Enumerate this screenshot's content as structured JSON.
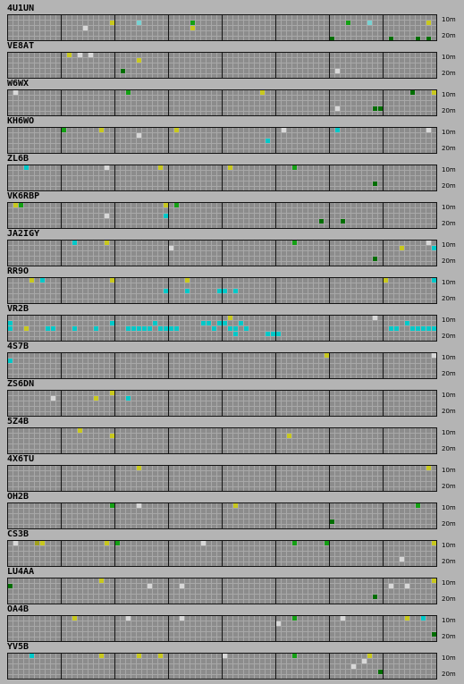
{
  "colors": {
    "background": "#b4b4b4",
    "cell": "#8c8c8c",
    "minor_line": "#a8a8a8",
    "major_line": "#141414",
    "yellow": "#c8c81e",
    "green": "#14a014",
    "darkgreen": "#006e00",
    "cyan": "#00c8c8",
    "lightcyan": "#78d2d2",
    "white": "#d8d8d8",
    "olive": "#a0a01e"
  },
  "band_labels": {
    "top": "10m",
    "bottom": "20m"
  },
  "grid": {
    "columns": 80,
    "rows": 5,
    "major_every": 10
  },
  "stations": [
    {
      "callsign": "4U1UN",
      "spots": [
        [
          19,
          1,
          "yellow"
        ],
        [
          24,
          1,
          "lightcyan"
        ],
        [
          34,
          1,
          "green"
        ],
        [
          34,
          2,
          "yellow"
        ],
        [
          63,
          1,
          "green"
        ],
        [
          67,
          1,
          "lightcyan"
        ],
        [
          78,
          1,
          "yellow"
        ],
        [
          60,
          4,
          "darkgreen"
        ],
        [
          71,
          4,
          "darkgreen"
        ],
        [
          76,
          4,
          "darkgreen"
        ],
        [
          78,
          4,
          "darkgreen"
        ],
        [
          14,
          2,
          "white"
        ]
      ]
    },
    {
      "callsign": "VE8AT",
      "spots": [
        [
          11,
          0,
          "yellow"
        ],
        [
          15,
          0,
          "white"
        ],
        [
          24,
          1,
          "yellow"
        ],
        [
          21,
          3,
          "darkgreen"
        ],
        [
          61,
          3,
          "white"
        ],
        [
          13,
          0,
          "white"
        ]
      ]
    },
    {
      "callsign": "W6WX",
      "spots": [
        [
          1,
          0,
          "white"
        ],
        [
          22,
          0,
          "green"
        ],
        [
          47,
          0,
          "yellow"
        ],
        [
          75,
          0,
          "darkgreen"
        ],
        [
          79,
          0,
          "yellow"
        ],
        [
          61,
          3,
          "white"
        ],
        [
          68,
          3,
          "darkgreen"
        ],
        [
          69,
          3,
          "darkgreen"
        ]
      ]
    },
    {
      "callsign": "KH6WO",
      "spots": [
        [
          10,
          0,
          "green"
        ],
        [
          17,
          0,
          "yellow"
        ],
        [
          31,
          0,
          "yellow"
        ],
        [
          51,
          0,
          "white"
        ],
        [
          61,
          0,
          "cyan"
        ],
        [
          78,
          0,
          "white"
        ],
        [
          48,
          2,
          "cyan"
        ],
        [
          24,
          1,
          "white"
        ]
      ]
    },
    {
      "callsign": "ZL6B",
      "spots": [
        [
          3,
          0,
          "cyan"
        ],
        [
          28,
          0,
          "yellow"
        ],
        [
          41,
          0,
          "yellow"
        ],
        [
          53,
          0,
          "green"
        ],
        [
          68,
          3,
          "darkgreen"
        ],
        [
          18,
          0,
          "white"
        ]
      ]
    },
    {
      "callsign": "VK6RBP",
      "spots": [
        [
          1,
          0,
          "yellow"
        ],
        [
          2,
          0,
          "green"
        ],
        [
          29,
          0,
          "yellow"
        ],
        [
          31,
          0,
          "green"
        ],
        [
          29,
          2,
          "cyan"
        ],
        [
          58,
          3,
          "darkgreen"
        ],
        [
          62,
          3,
          "darkgreen"
        ],
        [
          18,
          2,
          "white"
        ]
      ]
    },
    {
      "callsign": "JA2IGY",
      "spots": [
        [
          12,
          0,
          "cyan"
        ],
        [
          18,
          0,
          "yellow"
        ],
        [
          53,
          0,
          "green"
        ],
        [
          68,
          3,
          "darkgreen"
        ],
        [
          73,
          1,
          "yellow"
        ],
        [
          79,
          1,
          "cyan"
        ],
        [
          30,
          1,
          "white"
        ],
        [
          78,
          0,
          "white"
        ]
      ]
    },
    {
      "callsign": "RR9O",
      "spots": [
        [
          4,
          0,
          "yellow"
        ],
        [
          6,
          0,
          "cyan"
        ],
        [
          19,
          0,
          "yellow"
        ],
        [
          33,
          0,
          "yellow"
        ],
        [
          29,
          2,
          "cyan"
        ],
        [
          33,
          2,
          "cyan"
        ],
        [
          39,
          2,
          "cyan"
        ],
        [
          40,
          2,
          "cyan"
        ],
        [
          42,
          2,
          "cyan"
        ],
        [
          70,
          0,
          "yellow"
        ],
        [
          79,
          0,
          "cyan"
        ]
      ]
    },
    {
      "callsign": "VR2B",
      "spots": [
        [
          0,
          1,
          "cyan"
        ],
        [
          0,
          2,
          "cyan"
        ],
        [
          3,
          2,
          "yellow"
        ],
        [
          7,
          2,
          "cyan"
        ],
        [
          8,
          2,
          "cyan"
        ],
        [
          12,
          2,
          "cyan"
        ],
        [
          16,
          2,
          "cyan"
        ],
        [
          19,
          1,
          "cyan"
        ],
        [
          22,
          2,
          "cyan"
        ],
        [
          23,
          2,
          "cyan"
        ],
        [
          24,
          2,
          "cyan"
        ],
        [
          25,
          2,
          "cyan"
        ],
        [
          26,
          2,
          "cyan"
        ],
        [
          27,
          1,
          "cyan"
        ],
        [
          28,
          2,
          "cyan"
        ],
        [
          29,
          2,
          "cyan"
        ],
        [
          30,
          2,
          "cyan"
        ],
        [
          31,
          2,
          "cyan"
        ],
        [
          36,
          1,
          "cyan"
        ],
        [
          37,
          1,
          "cyan"
        ],
        [
          38,
          2,
          "cyan"
        ],
        [
          39,
          1,
          "cyan"
        ],
        [
          40,
          1,
          "cyan"
        ],
        [
          41,
          2,
          "cyan"
        ],
        [
          42,
          2,
          "cyan"
        ],
        [
          42,
          3,
          "cyan"
        ],
        [
          43,
          1,
          "cyan"
        ],
        [
          44,
          2,
          "cyan"
        ],
        [
          41,
          0,
          "yellow"
        ],
        [
          48,
          3,
          "cyan"
        ],
        [
          49,
          3,
          "cyan"
        ],
        [
          50,
          3,
          "cyan"
        ],
        [
          68,
          0,
          "white"
        ],
        [
          71,
          2,
          "cyan"
        ],
        [
          72,
          2,
          "cyan"
        ],
        [
          74,
          1,
          "cyan"
        ],
        [
          75,
          2,
          "cyan"
        ],
        [
          76,
          2,
          "cyan"
        ],
        [
          77,
          2,
          "cyan"
        ],
        [
          78,
          2,
          "cyan"
        ],
        [
          79,
          2,
          "cyan"
        ]
      ]
    },
    {
      "callsign": "4S7B",
      "spots": [
        [
          0,
          1,
          "cyan"
        ],
        [
          59,
          0,
          "yellow"
        ],
        [
          79,
          0,
          "white"
        ]
      ]
    },
    {
      "callsign": "ZS6DN",
      "spots": [
        [
          16,
          1,
          "yellow"
        ],
        [
          19,
          0,
          "yellow"
        ],
        [
          22,
          1,
          "cyan"
        ],
        [
          8,
          1,
          "white"
        ]
      ]
    },
    {
      "callsign": "5Z4B",
      "spots": [
        [
          13,
          0,
          "yellow"
        ],
        [
          19,
          1,
          "yellow"
        ],
        [
          52,
          1,
          "yellow"
        ]
      ]
    },
    {
      "callsign": "4X6TU",
      "spots": [
        [
          24,
          0,
          "yellow"
        ],
        [
          78,
          0,
          "yellow"
        ]
      ]
    },
    {
      "callsign": "OH2B",
      "spots": [
        [
          19,
          0,
          "green"
        ],
        [
          24,
          0,
          "white"
        ],
        [
          42,
          0,
          "yellow"
        ],
        [
          60,
          3,
          "darkgreen"
        ],
        [
          76,
          0,
          "green"
        ]
      ]
    },
    {
      "callsign": "CS3B",
      "spots": [
        [
          1,
          0,
          "white"
        ],
        [
          6,
          0,
          "yellow"
        ],
        [
          18,
          0,
          "yellow"
        ],
        [
          20,
          0,
          "green"
        ],
        [
          36,
          0,
          "white"
        ],
        [
          53,
          0,
          "green"
        ],
        [
          59,
          0,
          "green"
        ],
        [
          73,
          3,
          "white"
        ],
        [
          79,
          0,
          "yellow"
        ],
        [
          5,
          0,
          "olive"
        ]
      ]
    },
    {
      "callsign": "LU4AA",
      "spots": [
        [
          0,
          1,
          "darkgreen"
        ],
        [
          17,
          0,
          "yellow"
        ],
        [
          26,
          1,
          "white"
        ],
        [
          32,
          1,
          "white"
        ],
        [
          68,
          3,
          "darkgreen"
        ],
        [
          71,
          1,
          "white"
        ],
        [
          74,
          1,
          "white"
        ],
        [
          79,
          0,
          "yellow"
        ]
      ]
    },
    {
      "callsign": "OA4B",
      "spots": [
        [
          12,
          0,
          "yellow"
        ],
        [
          32,
          0,
          "white"
        ],
        [
          50,
          1,
          "white"
        ],
        [
          53,
          0,
          "green"
        ],
        [
          62,
          0,
          "white"
        ],
        [
          74,
          0,
          "yellow"
        ],
        [
          77,
          0,
          "cyan"
        ],
        [
          79,
          3,
          "darkgreen"
        ],
        [
          22,
          0,
          "white"
        ]
      ]
    },
    {
      "callsign": "YV5B",
      "spots": [
        [
          4,
          0,
          "cyan"
        ],
        [
          17,
          0,
          "yellow"
        ],
        [
          24,
          0,
          "yellow"
        ],
        [
          28,
          0,
          "yellow"
        ],
        [
          53,
          0,
          "green"
        ],
        [
          66,
          1,
          "white"
        ],
        [
          67,
          0,
          "yellow"
        ],
        [
          64,
          2,
          "white"
        ],
        [
          69,
          3,
          "darkgreen"
        ],
        [
          40,
          0,
          "white"
        ]
      ]
    }
  ]
}
